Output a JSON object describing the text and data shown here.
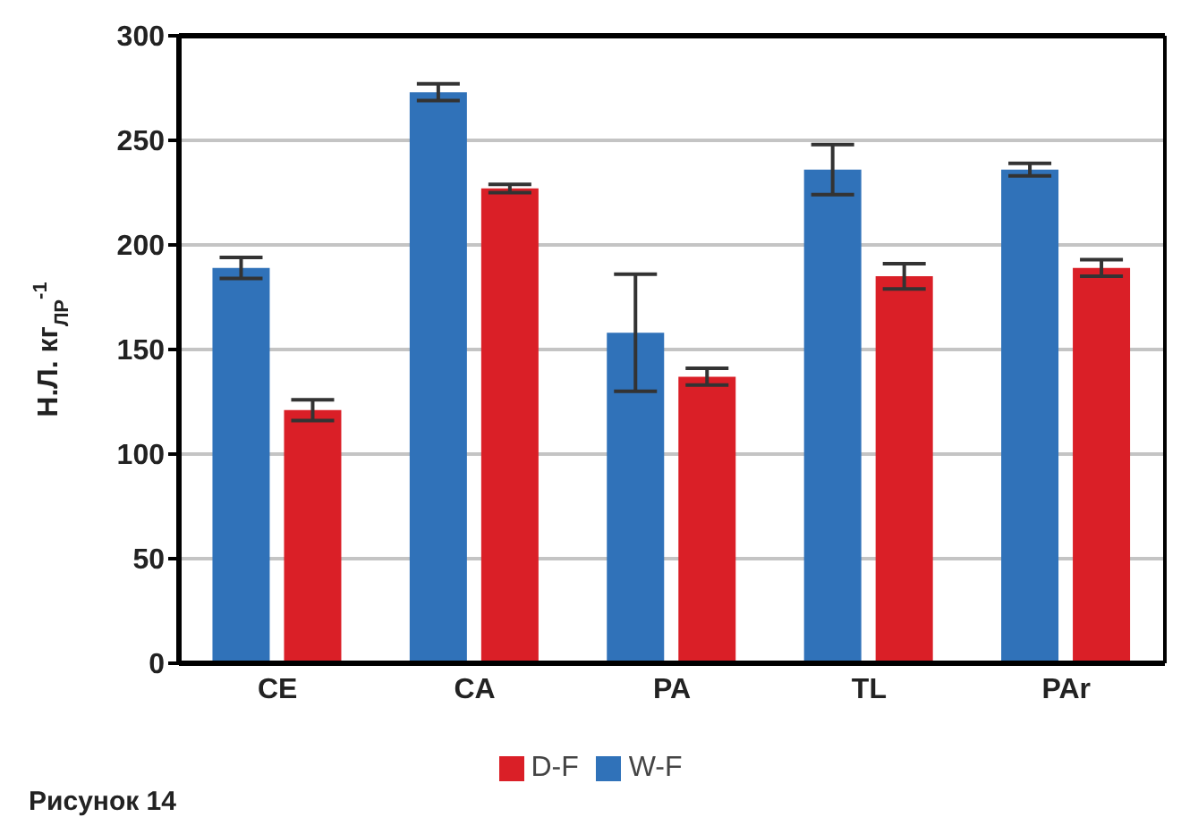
{
  "chart_data": {
    "type": "bar",
    "categories": [
      "CE",
      "CA",
      "PA",
      "TL",
      "PAr"
    ],
    "series": [
      {
        "name": "W-F",
        "color": "#3072b9",
        "values": [
          189,
          273,
          158,
          236,
          236
        ],
        "errors": [
          5,
          4,
          28,
          12,
          3
        ]
      },
      {
        "name": "D-F",
        "color": "#da1f27",
        "values": [
          121,
          227,
          137,
          185,
          189
        ],
        "errors": [
          5,
          2,
          4,
          6,
          4
        ]
      }
    ],
    "ylabel": "Н.Л. кг$_{ЛР}$$^{-1}$",
    "ylim": [
      0,
      300
    ],
    "yticks": [
      0,
      50,
      100,
      150,
      200,
      250,
      300
    ],
    "grid": "y",
    "legend": "bottom",
    "annotations": [
      "Рисунок 14"
    ]
  }
}
